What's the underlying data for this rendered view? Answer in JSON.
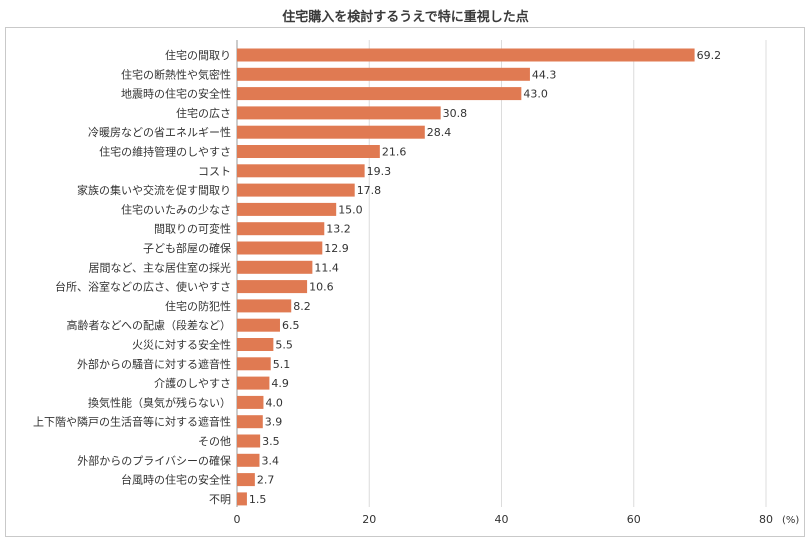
{
  "chart_data": {
    "type": "bar",
    "orientation": "horizontal",
    "title": "住宅購入を検討するうえで特に重視した点",
    "xlabel": "",
    "ylabel": "",
    "unit_label": "(%)",
    "xlim": [
      0,
      80
    ],
    "xticks": [
      "0",
      "20",
      "40",
      "60",
      "80"
    ],
    "grid": true,
    "bar_color": "#E07A52",
    "categories": [
      "住宅の間取り",
      "住宅の断熱性や気密性",
      "地震時の住宅の安全性",
      "住宅の広さ",
      "冷暖房などの省エネルギー性",
      "住宅の維持管理のしやすさ",
      "コスト",
      "家族の集いや交流を促す間取り",
      "住宅のいたみの少なさ",
      "間取りの可変性",
      "子ども部屋の確保",
      "居間など、主な居住室の採光",
      "台所、浴室などの広さ、使いやすさ",
      "住宅の防犯性",
      "高齢者などへの配慮（段差など）",
      "火災に対する安全性",
      "外部からの騒音に対する遮音性",
      "介護のしやすさ",
      "換気性能（臭気が残らない）",
      "上下階や隣戸の生活音等に対する遮音性",
      "その他",
      "外部からのプライバシーの確保",
      "台風時の住宅の安全性",
      "不明"
    ],
    "values": [
      69.2,
      44.3,
      43.0,
      30.8,
      28.4,
      21.6,
      19.3,
      17.8,
      15.0,
      13.2,
      12.9,
      11.4,
      10.6,
      8.2,
      6.5,
      5.5,
      5.1,
      4.9,
      4.0,
      3.9,
      3.5,
      3.4,
      2.7,
      1.5
    ],
    "value_labels": [
      "69.2",
      "44.3",
      "43.0",
      "30.8",
      "28.4",
      "21.6",
      "19.3",
      "17.8",
      "15.0",
      "13.2",
      "12.9",
      "11.4",
      "10.6",
      "8.2",
      "6.5",
      "5.5",
      "5.1",
      "4.9",
      "4.0",
      "3.9",
      "3.5",
      "3.4",
      "2.7",
      "1.5"
    ]
  }
}
